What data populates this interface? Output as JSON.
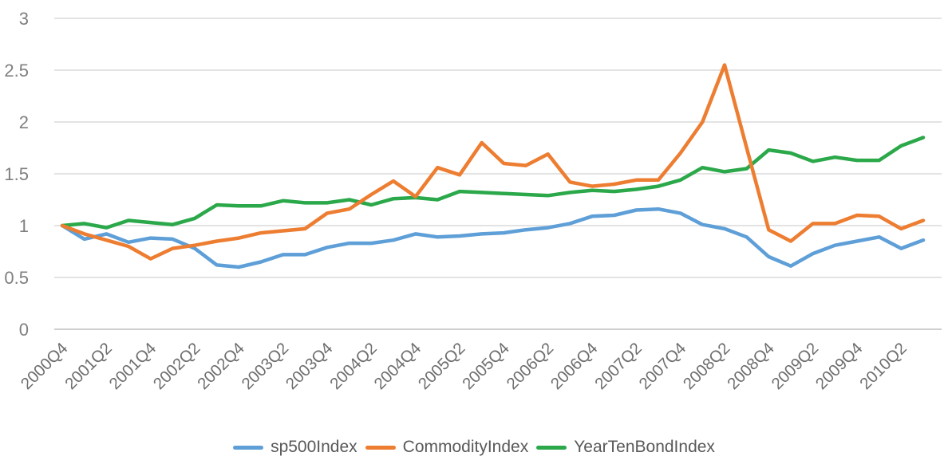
{
  "chart_data": {
    "type": "line",
    "title": "",
    "categories": [
      "2000Q4",
      "2001Q1",
      "2001Q2",
      "2001Q3",
      "2001Q4",
      "2002Q1",
      "2002Q2",
      "2002Q3",
      "2002Q4",
      "2003Q1",
      "2003Q2",
      "2003Q3",
      "2003Q4",
      "2004Q1",
      "2004Q2",
      "2004Q3",
      "2004Q4",
      "2005Q1",
      "2005Q2",
      "2005Q3",
      "2005Q4",
      "2006Q1",
      "2006Q2",
      "2006Q3",
      "2006Q4",
      "2007Q1",
      "2007Q2",
      "2007Q3",
      "2007Q4",
      "2008Q1",
      "2008Q2",
      "2008Q3",
      "2008Q4",
      "2009Q1",
      "2009Q2",
      "2009Q3",
      "2009Q4",
      "2010Q1",
      "2010Q2",
      "2010Q3"
    ],
    "visible_x_labels": [
      "2000Q4",
      "2001Q2",
      "2001Q4",
      "2002Q2",
      "2002Q4",
      "2003Q2",
      "2003Q4",
      "2004Q2",
      "2004Q4",
      "2005Q2",
      "2005Q4",
      "2006Q2",
      "2006Q4",
      "2007Q2",
      "2007Q4",
      "2008Q2",
      "2008Q4",
      "2009Q2",
      "2009Q4",
      "2010Q2"
    ],
    "x_label_every": 2,
    "y_ticks": [
      "3",
      "2.5",
      "2",
      "1.5",
      "1",
      "0.5",
      "0"
    ],
    "ylim": [
      0,
      3
    ],
    "grid": true,
    "legend_position": "bottom",
    "series": [
      {
        "name": "sp500Index",
        "color": "#5E9FD8",
        "values": [
          1.0,
          0.87,
          0.92,
          0.84,
          0.88,
          0.87,
          0.78,
          0.62,
          0.6,
          0.65,
          0.72,
          0.72,
          0.79,
          0.83,
          0.83,
          0.86,
          0.92,
          0.89,
          0.9,
          0.92,
          0.93,
          0.96,
          0.98,
          1.02,
          1.09,
          1.1,
          1.15,
          1.16,
          1.12,
          1.01,
          0.97,
          0.89,
          0.7,
          0.61,
          0.73,
          0.81,
          0.85,
          0.89,
          0.78,
          0.86
        ]
      },
      {
        "name": "CommodityIndex",
        "color": "#ED7D31",
        "values": [
          1.0,
          0.92,
          0.86,
          0.8,
          0.68,
          0.78,
          0.81,
          0.85,
          0.88,
          0.93,
          0.95,
          0.97,
          1.12,
          1.16,
          1.3,
          1.43,
          1.28,
          1.56,
          1.49,
          1.8,
          1.6,
          1.58,
          1.69,
          1.42,
          1.38,
          1.4,
          1.44,
          1.44,
          1.7,
          2.0,
          2.55,
          1.75,
          0.96,
          0.85,
          1.02,
          1.02,
          1.1,
          1.09,
          0.97,
          1.05
        ]
      },
      {
        "name": "YearTenBondIndex",
        "color": "#2BA84A",
        "values": [
          1.0,
          1.02,
          0.98,
          1.05,
          1.03,
          1.01,
          1.07,
          1.2,
          1.19,
          1.19,
          1.24,
          1.22,
          1.22,
          1.25,
          1.2,
          1.26,
          1.27,
          1.25,
          1.33,
          1.32,
          1.31,
          1.3,
          1.29,
          1.32,
          1.34,
          1.33,
          1.35,
          1.38,
          1.44,
          1.56,
          1.52,
          1.55,
          1.73,
          1.7,
          1.62,
          1.66,
          1.63,
          1.63,
          1.77,
          1.85
        ]
      }
    ],
    "colors": {
      "grid": "#DADADA",
      "zero_axis": "#BFBFBF",
      "y_tick_text": "#7F7F7F",
      "x_tick_text": "#6E6E6E",
      "legend_text": "#595959"
    }
  }
}
